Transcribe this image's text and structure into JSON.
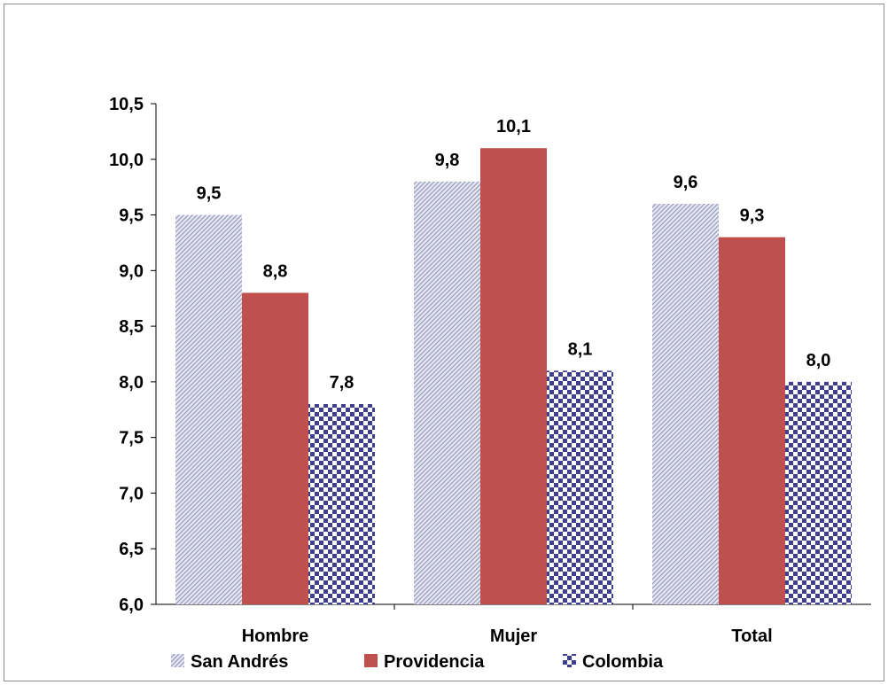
{
  "chart_data": {
    "type": "bar",
    "title": "",
    "xlabel": "",
    "ylabel": "",
    "categories": [
      "Hombre",
      "Mujer",
      "Total"
    ],
    "series": [
      {
        "name": "San Andrés",
        "values": [
          9.5,
          9.8,
          9.6
        ],
        "labels": [
          "9,5",
          "9,8",
          "9,6"
        ],
        "color": "#c4c6dc",
        "pattern": "diagonal"
      },
      {
        "name": "Providencia",
        "values": [
          8.8,
          10.1,
          9.3
        ],
        "labels": [
          "8,8",
          "10,1",
          "9,3"
        ],
        "color": "#c0504d",
        "pattern": "solid"
      },
      {
        "name": "Colombia",
        "values": [
          7.8,
          8.1,
          8.0
        ],
        "labels": [
          "7,8",
          "8,1",
          "8,0"
        ],
        "color": "#4a4a9a",
        "pattern": "checker"
      }
    ],
    "ylim": [
      6.0,
      10.5
    ],
    "yticks": [
      "6,0",
      "6,5",
      "7,0",
      "7,5",
      "8,0",
      "8,5",
      "9,0",
      "9,5",
      "10,0",
      "10,5"
    ],
    "grid": false,
    "legend_position": "bottom"
  }
}
